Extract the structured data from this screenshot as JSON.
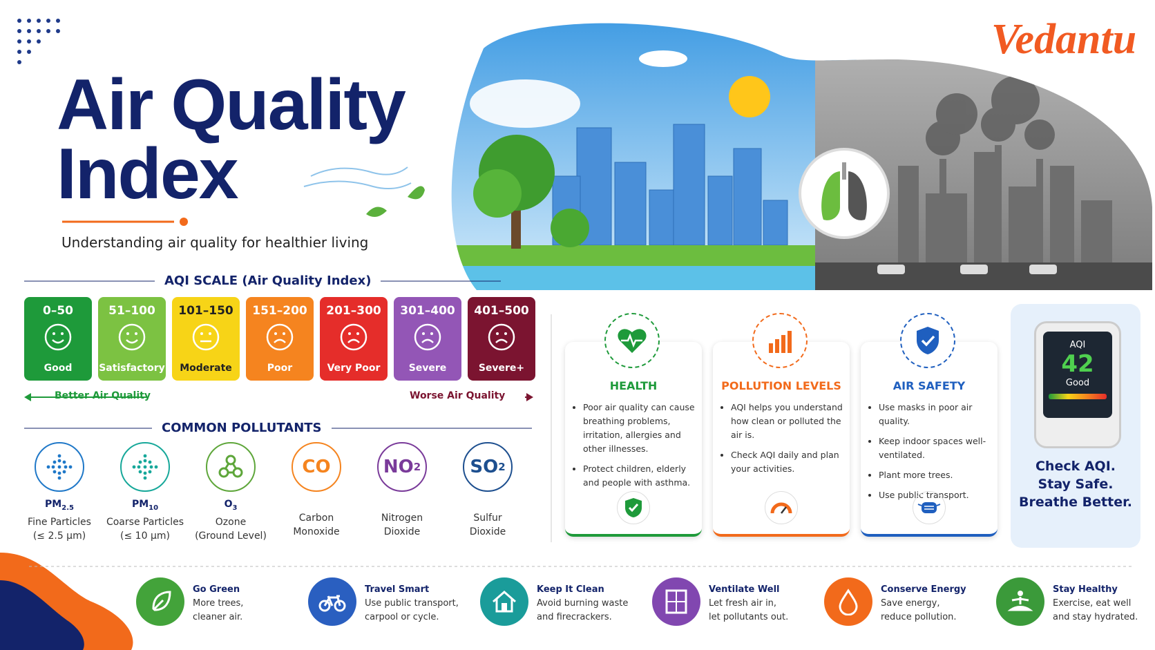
{
  "header": {
    "title_line1": "Air Quality",
    "title_line2": "Index",
    "subtitle": "Understanding air quality for healthier living",
    "logo": "Vedantu"
  },
  "aqi_scale": {
    "heading": "AQI SCALE (Air Quality Index)",
    "levels": [
      {
        "range": "0–50",
        "label": "Good",
        "color": "#1e9a3a"
      },
      {
        "range": "51–100",
        "label": "Satisfactory",
        "color": "#7cc242"
      },
      {
        "range": "101–150",
        "label": "Moderate",
        "color": "#f7d417"
      },
      {
        "range": "151–200",
        "label": "Poor",
        "color": "#f5841f"
      },
      {
        "range": "201–300",
        "label": "Very Poor",
        "color": "#e52d2a"
      },
      {
        "range": "301–400",
        "label": "Severe",
        "color": "#9356b6"
      },
      {
        "range": "401–500",
        "label": "Severe+",
        "color": "#7b1430"
      }
    ],
    "better": "Better Air Quality",
    "worse": "Worse Air Quality"
  },
  "pollutants": {
    "heading": "COMMON POLLUTANTS",
    "items": [
      {
        "formula": "PM",
        "formula_sub": "2.5",
        "name": "Fine Particles",
        "detail": "(≤ 2.5 μm)",
        "color": "#1f78c8"
      },
      {
        "formula": "PM",
        "formula_sub": "10",
        "name": "Coarse Particles",
        "detail": "(≤ 10 μm)",
        "color": "#17a89a"
      },
      {
        "formula": "O",
        "formula_sub": "3",
        "name": "Ozone",
        "detail": "(Ground Level)",
        "color": "#5ea63a"
      },
      {
        "icon_text": "CO",
        "name": "Carbon",
        "detail": "Monoxide",
        "color": "#f5841f"
      },
      {
        "icon_text": "NO",
        "icon_sub": "2",
        "name": "Nitrogen",
        "detail": "Dioxide",
        "color": "#7a3b9a"
      },
      {
        "icon_text": "SO",
        "icon_sub": "2",
        "name": "Sulfur",
        "detail": "Dioxide",
        "color": "#1d4f8f"
      }
    ]
  },
  "cards": [
    {
      "title": "HEALTH",
      "color": "#1e9a3a",
      "bullets": [
        "Poor air quality can cause breathing problems, irritation, allergies and other illnesses.",
        "Protect children, elderly and people with asthma."
      ]
    },
    {
      "title": "POLLUTION LEVELS",
      "color": "#f26a1b",
      "bullets": [
        "AQI helps you understand how clean or polluted the air is.",
        "Check AQI daily and plan your activities."
      ]
    },
    {
      "title": "AIR SAFETY",
      "color": "#1f5fbf",
      "bullets": [
        "Use masks in poor air quality.",
        "Keep indoor spaces well-ventilated.",
        "Plant more trees.",
        "Use public transport."
      ]
    }
  ],
  "device": {
    "label": "AQI",
    "value": 42,
    "status": "Good",
    "tagline": [
      "Check AQI.",
      "Stay Safe.",
      "Breathe Better."
    ]
  },
  "tips": [
    {
      "title": "Go Green",
      "lines": [
        "More trees,",
        "cleaner air."
      ],
      "color": "#43a33a"
    },
    {
      "title": "Travel Smart",
      "lines": [
        "Use public transport,",
        "carpool or cycle."
      ],
      "color": "#2a5fc0"
    },
    {
      "title": "Keep It Clean",
      "lines": [
        "Avoid burning waste",
        "and firecrackers."
      ],
      "color": "#1a9c9a"
    },
    {
      "title": "Ventilate Well",
      "lines": [
        "Let fresh air in,",
        "let pollutants out."
      ],
      "color": "#8147b0"
    },
    {
      "title": "Conserve Energy",
      "lines": [
        "Save energy,",
        "reduce pollution."
      ],
      "color": "#f26a1b"
    },
    {
      "title": "Stay Healthy",
      "lines": [
        "Exercise, eat well",
        "and stay hydrated."
      ],
      "color": "#3b9a3a"
    }
  ]
}
